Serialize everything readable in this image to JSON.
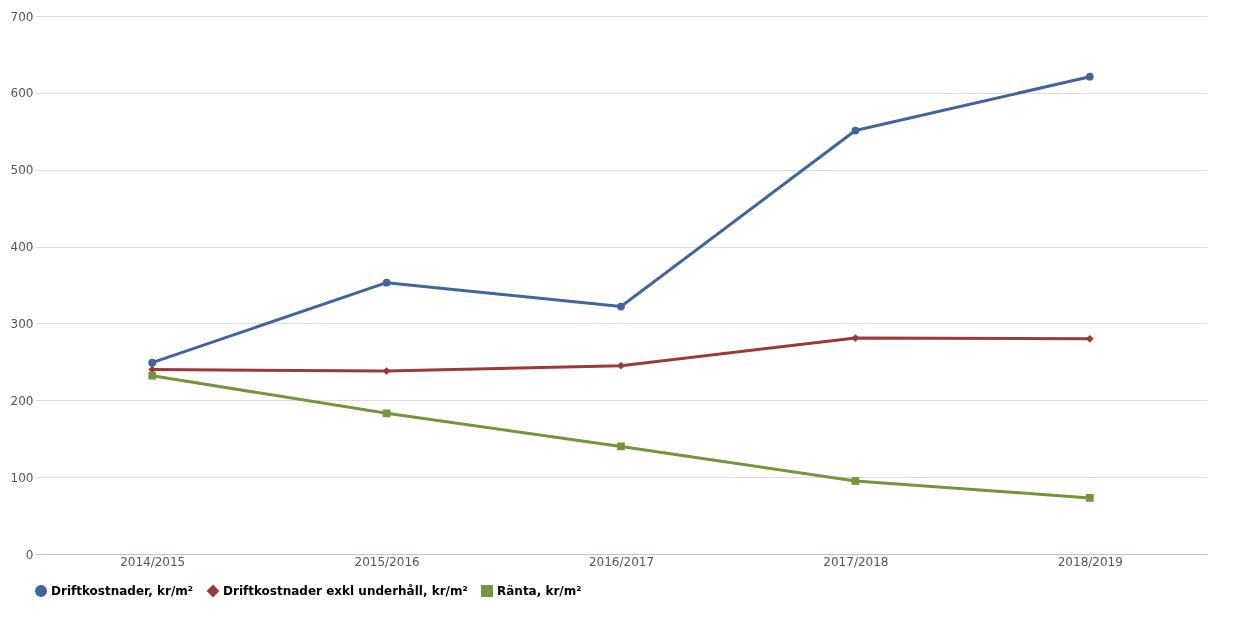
{
  "chart_data": {
    "type": "line",
    "categories": [
      "2014/2015",
      "2015/2016",
      "2016/2017",
      "2017/2018",
      "2018/2019"
    ],
    "series": [
      {
        "name": "Driftkostnader, kr/m²",
        "color": "#41659a",
        "marker": "circle",
        "values": [
          249,
          353,
          322,
          551,
          621
        ]
      },
      {
        "name": "Driftkostnader exkl underhåll, kr/m²",
        "color": "#9b3b38",
        "marker": "diamond",
        "values": [
          240,
          238,
          245,
          281,
          280
        ]
      },
      {
        "name": "Ränta, kr/m²",
        "color": "#76943c",
        "marker": "square",
        "values": [
          232,
          183,
          140,
          95,
          73
        ]
      }
    ],
    "ylim": [
      0,
      700
    ],
    "yticks": [
      0,
      100,
      200,
      300,
      400,
      500,
      600,
      700
    ],
    "grid": "y",
    "legend": "bottom",
    "line_style": "solid"
  }
}
